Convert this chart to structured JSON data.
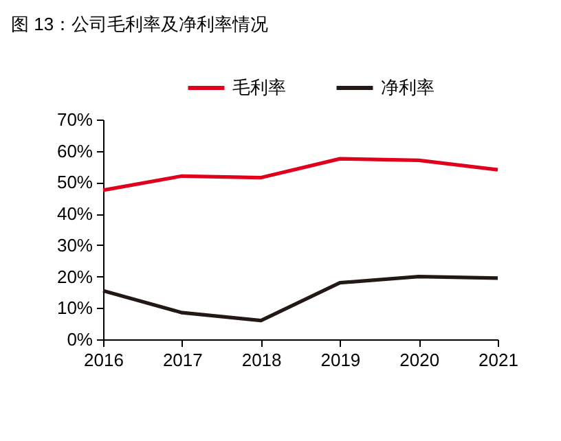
{
  "chart_data": {
    "type": "line",
    "title": "图 13：公司毛利率及净利率情况",
    "x": [
      2016,
      2017,
      2018,
      2019,
      2020,
      2021
    ],
    "series": [
      {
        "name": "毛利率",
        "color": "#e0001b",
        "values": [
          47.5,
          52,
          51.5,
          57.5,
          57,
          54
        ]
      },
      {
        "name": "净利率",
        "color": "#231815",
        "values": [
          15.5,
          8.5,
          6,
          18,
          20,
          19.5
        ]
      }
    ],
    "xlim": [
      2016,
      2021
    ],
    "xticks": [
      2016,
      2017,
      2018,
      2019,
      2020,
      2021
    ],
    "ylim": [
      0,
      70
    ],
    "yticks": [
      {
        "value": 0,
        "label": "0%"
      },
      {
        "value": 10,
        "label": "10%"
      },
      {
        "value": 20,
        "label": "20%"
      },
      {
        "value": 30,
        "label": "30%"
      },
      {
        "value": 40,
        "label": "40%"
      },
      {
        "value": 50,
        "label": "50%"
      },
      {
        "value": 60,
        "label": "60%"
      },
      {
        "value": 70,
        "label": "70%"
      }
    ],
    "grid": false,
    "legend": "top",
    "marker": "none",
    "line_style": "solid"
  }
}
